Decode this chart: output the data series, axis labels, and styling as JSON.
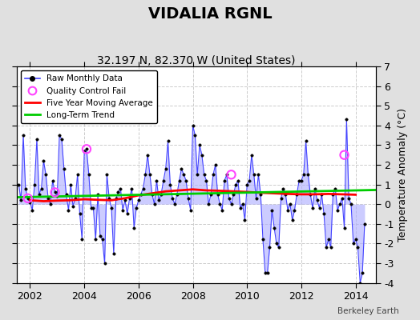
{
  "title": "VIDALIA RGNL",
  "subtitle": "32.197 N, 82.370 W (United States)",
  "ylabel": "Temperature Anomaly (°C)",
  "watermark": "Berkeley Earth",
  "ylim": [
    -4,
    7
  ],
  "xlim": [
    2001.5,
    2014.75
  ],
  "xticks": [
    2002,
    2004,
    2006,
    2008,
    2010,
    2012,
    2014
  ],
  "yticks": [
    -4,
    -3,
    -2,
    -1,
    0,
    1,
    2,
    3,
    4,
    5,
    6,
    7
  ],
  "raw_x": [
    2001.583,
    2001.667,
    2001.75,
    2001.833,
    2001.917,
    2002.0,
    2002.083,
    2002.167,
    2002.25,
    2002.333,
    2002.417,
    2002.5,
    2002.583,
    2002.667,
    2002.75,
    2002.833,
    2002.917,
    2003.0,
    2003.083,
    2003.167,
    2003.25,
    2003.333,
    2003.417,
    2003.5,
    2003.583,
    2003.667,
    2003.75,
    2003.833,
    2003.917,
    2004.0,
    2004.083,
    2004.167,
    2004.25,
    2004.333,
    2004.417,
    2004.5,
    2004.583,
    2004.667,
    2004.75,
    2004.833,
    2004.917,
    2005.0,
    2005.083,
    2005.167,
    2005.25,
    2005.333,
    2005.417,
    2005.5,
    2005.583,
    2005.667,
    2005.75,
    2005.833,
    2005.917,
    2006.0,
    2006.083,
    2006.167,
    2006.25,
    2006.333,
    2006.417,
    2006.5,
    2006.583,
    2006.667,
    2006.75,
    2006.833,
    2006.917,
    2007.0,
    2007.083,
    2007.167,
    2007.25,
    2007.333,
    2007.417,
    2007.5,
    2007.583,
    2007.667,
    2007.75,
    2007.833,
    2007.917,
    2008.0,
    2008.083,
    2008.167,
    2008.25,
    2008.333,
    2008.417,
    2008.5,
    2008.583,
    2008.667,
    2008.75,
    2008.833,
    2008.917,
    2009.0,
    2009.083,
    2009.167,
    2009.25,
    2009.333,
    2009.417,
    2009.5,
    2009.583,
    2009.667,
    2009.75,
    2009.833,
    2009.917,
    2010.0,
    2010.083,
    2010.167,
    2010.25,
    2010.333,
    2010.417,
    2010.5,
    2010.583,
    2010.667,
    2010.75,
    2010.833,
    2010.917,
    2011.0,
    2011.083,
    2011.167,
    2011.25,
    2011.333,
    2011.417,
    2011.5,
    2011.583,
    2011.667,
    2011.75,
    2011.833,
    2011.917,
    2012.0,
    2012.083,
    2012.167,
    2012.25,
    2012.333,
    2012.417,
    2012.5,
    2012.583,
    2012.667,
    2012.75,
    2012.833,
    2012.917,
    2013.0,
    2013.083,
    2013.167,
    2013.25,
    2013.333,
    2013.417,
    2013.5,
    2013.583,
    2013.667,
    2013.75,
    2013.833,
    2013.917,
    2014.0,
    2014.083,
    2014.167,
    2014.25,
    2014.333
  ],
  "raw_y": [
    1.0,
    0.2,
    3.5,
    0.8,
    0.3,
    0.1,
    -0.3,
    1.0,
    3.3,
    0.5,
    0.8,
    2.2,
    1.5,
    0.3,
    0.0,
    1.2,
    0.6,
    0.4,
    3.5,
    3.3,
    1.8,
    0.5,
    -0.3,
    1.0,
    -0.1,
    0.3,
    1.5,
    -0.5,
    -1.8,
    2.7,
    2.8,
    1.5,
    -0.2,
    -0.2,
    -1.8,
    0.5,
    -1.6,
    -1.8,
    -3.0,
    1.5,
    0.3,
    -0.2,
    -2.5,
    0.3,
    0.6,
    0.8,
    -0.3,
    0.2,
    -0.5,
    0.3,
    0.8,
    -1.2,
    -0.2,
    0.2,
    0.5,
    0.8,
    1.5,
    2.5,
    1.5,
    0.5,
    0.0,
    1.2,
    0.2,
    0.5,
    1.2,
    1.8,
    3.2,
    1.0,
    0.3,
    0.0,
    0.5,
    1.2,
    1.8,
    1.5,
    1.2,
    0.3,
    -0.3,
    4.0,
    3.5,
    1.5,
    3.0,
    2.5,
    1.5,
    1.2,
    0.0,
    0.5,
    1.5,
    2.0,
    0.5,
    0.0,
    -0.3,
    1.2,
    1.5,
    0.3,
    0.0,
    0.5,
    1.0,
    1.2,
    -0.2,
    0.0,
    -0.8,
    1.0,
    1.2,
    2.5,
    1.5,
    0.3,
    1.5,
    0.5,
    -1.8,
    -3.5,
    -3.5,
    -2.2,
    -0.3,
    -1.2,
    -2.0,
    -2.2,
    0.3,
    0.8,
    0.5,
    -0.3,
    0.0,
    -0.8,
    -0.3,
    0.5,
    1.2,
    1.2,
    1.5,
    3.2,
    1.5,
    0.5,
    -0.2,
    0.8,
    0.2,
    -0.2,
    0.5,
    -0.5,
    -2.2,
    -1.8,
    -2.2,
    0.5,
    0.8,
    -0.3,
    0.0,
    0.3,
    -1.2,
    4.3,
    0.3,
    0.0,
    -2.0,
    -1.8,
    -2.2,
    -4.0,
    -3.5,
    -1.0
  ],
  "qc_fail_x": [
    2001.917,
    2002.917,
    2004.083,
    2009.417,
    2013.583
  ],
  "qc_fail_y": [
    0.3,
    0.6,
    2.8,
    1.5,
    2.5
  ],
  "moving_avg_x": [
    2002.0,
    2002.5,
    2003.0,
    2003.5,
    2004.0,
    2004.5,
    2005.0,
    2005.5,
    2006.0,
    2006.5,
    2007.0,
    2007.5,
    2008.0,
    2008.5,
    2009.0,
    2009.5,
    2010.0,
    2010.5,
    2011.0,
    2011.5,
    2012.0,
    2012.5,
    2013.0,
    2013.5,
    2014.0
  ],
  "moving_avg_y": [
    0.2,
    0.15,
    0.18,
    0.2,
    0.25,
    0.22,
    0.2,
    0.3,
    0.45,
    0.55,
    0.65,
    0.7,
    0.75,
    0.7,
    0.68,
    0.65,
    0.62,
    0.58,
    0.55,
    0.52,
    0.5,
    0.5,
    0.52,
    0.5,
    0.48
  ],
  "trend_x": [
    2001.5,
    2014.75
  ],
  "trend_y": [
    0.35,
    0.72
  ],
  "raw_line_color": "#4444ff",
  "raw_fill_color": "#aaaaff",
  "raw_marker_color": "#000000",
  "qc_color": "#ff44ff",
  "moving_avg_color": "#ff0000",
  "trend_color": "#00cc00",
  "plot_bg_color": "#ffffff",
  "fig_bg_color": "#e0e0e0",
  "grid_color": "#cccccc",
  "title_fontsize": 14,
  "subtitle_fontsize": 10,
  "tick_fontsize": 9,
  "ylabel_fontsize": 9
}
